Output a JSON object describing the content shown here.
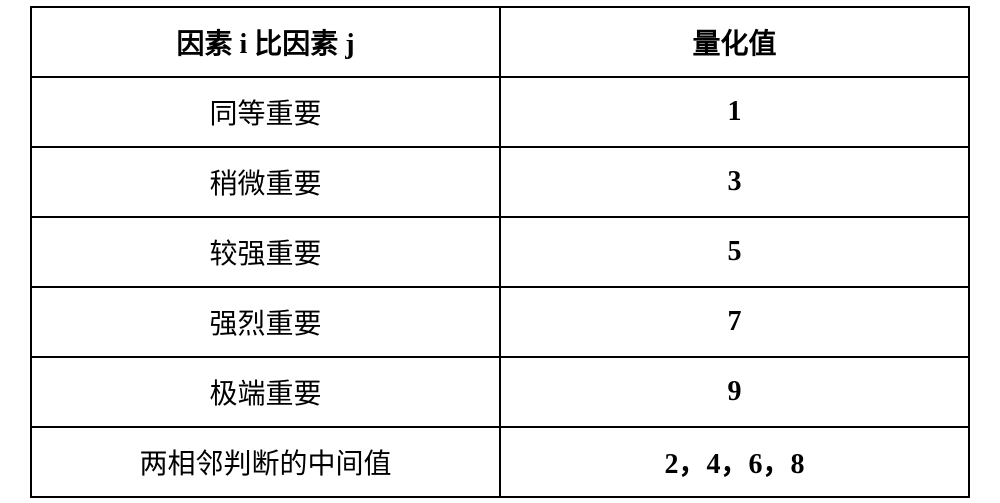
{
  "table": {
    "type": "table",
    "background_color": "#ffffff",
    "border_color": "#000000",
    "border_width": 2,
    "font_size": 28,
    "text_color": "#000000",
    "header_font_weight": "bold",
    "value_font_weight": "bold",
    "columns": [
      {
        "label": "因素 i 比因素 j",
        "width": "50%",
        "align": "center"
      },
      {
        "label": "量化值",
        "width": "50%",
        "align": "center"
      }
    ],
    "rows": [
      {
        "factor": "同等重要",
        "value": "1"
      },
      {
        "factor": "稍微重要",
        "value": "3"
      },
      {
        "factor": "较强重要",
        "value": "5"
      },
      {
        "factor": "强烈重要",
        "value": "7"
      },
      {
        "factor": "极端重要",
        "value": "9"
      },
      {
        "factor": "两相邻判断的中间值",
        "value": "2，4，6，8"
      }
    ]
  }
}
